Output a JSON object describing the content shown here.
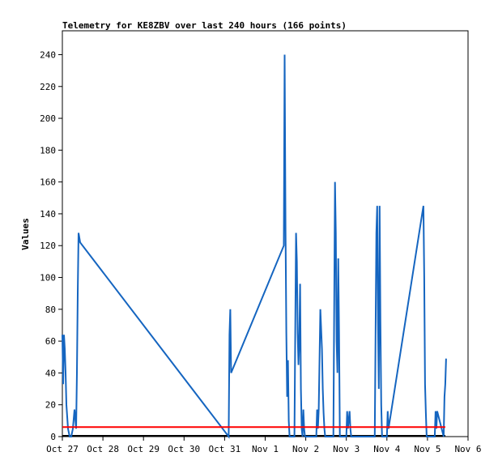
{
  "chart_data": {
    "type": "line",
    "title": "Telemetry for KE8ZBV over last 240 hours (166 points)",
    "ylabel": "Values",
    "xlabel": "",
    "xlim": [
      0,
      10
    ],
    "ylim": [
      0,
      255
    ],
    "yticks": [
      0,
      20,
      40,
      60,
      80,
      100,
      120,
      140,
      160,
      180,
      200,
      220,
      240
    ],
    "xtick_labels": [
      "Oct 27",
      "Oct 28",
      "Oct 29",
      "Oct 30",
      "Oct 31",
      "Nov 1",
      "Nov 2",
      "Nov 3",
      "Nov 4",
      "Nov 5",
      "Nov 6"
    ],
    "grid": false,
    "colors": {
      "series": "#1565c0",
      "threshold": "#ff0000",
      "baseline": "#000000"
    },
    "series": [
      {
        "color": "#1565c0",
        "x": [
          0.0,
          0.02,
          0.04,
          0.06,
          0.08,
          0.1,
          0.14,
          0.18,
          0.22,
          0.26,
          0.3,
          0.34,
          0.36,
          0.38,
          0.4,
          0.42,
          0.44,
          4.1,
          4.12,
          4.14,
          4.16,
          5.46,
          5.48,
          5.5,
          5.52,
          5.54,
          5.56,
          5.58,
          5.6,
          5.72,
          5.74,
          5.76,
          5.78,
          5.8,
          5.82,
          5.84,
          5.86,
          5.88,
          5.9,
          5.92,
          5.94,
          5.96,
          5.98,
          6.26,
          6.28,
          6.3,
          6.32,
          6.36,
          6.4,
          6.42,
          6.44,
          6.46,
          6.48,
          6.5,
          6.68,
          6.7,
          6.72,
          6.74,
          6.76,
          6.78,
          6.8,
          6.82,
          6.84,
          7.0,
          7.02,
          7.04,
          7.08,
          7.1,
          7.12,
          7.7,
          7.72,
          7.74,
          7.76,
          7.78,
          7.8,
          7.82,
          7.84,
          7.86,
          7.88,
          8.0,
          8.02,
          8.04,
          8.9,
          8.92,
          8.94,
          8.96,
          8.98,
          9.18,
          9.2,
          9.22,
          9.24,
          9.4,
          9.42,
          9.44,
          9.46
        ],
        "values": [
          64,
          33,
          64,
          55,
          40,
          20,
          5,
          0,
          0,
          5,
          17,
          5,
          40,
          90,
          128,
          125,
          122,
          0,
          64,
          80,
          40,
          120,
          240,
          130,
          65,
          25,
          48,
          10,
          0,
          0,
          65,
          128,
          110,
          65,
          45,
          60,
          96,
          30,
          5,
          0,
          17,
          5,
          0,
          0,
          17,
          5,
          17,
          80,
          55,
          30,
          15,
          5,
          0,
          0,
          0,
          80,
          160,
          128,
          60,
          40,
          112,
          65,
          0,
          0,
          16,
          5,
          16,
          5,
          0,
          0,
          64,
          128,
          145,
          72,
          30,
          145,
          72,
          20,
          0,
          0,
          16,
          5,
          145,
          100,
          33,
          15,
          0,
          0,
          16,
          5,
          16,
          0,
          25,
          33,
          49
        ]
      },
      {
        "color": "#ff0000",
        "x": [
          0,
          9.44
        ],
        "values": [
          6,
          6
        ]
      }
    ]
  }
}
